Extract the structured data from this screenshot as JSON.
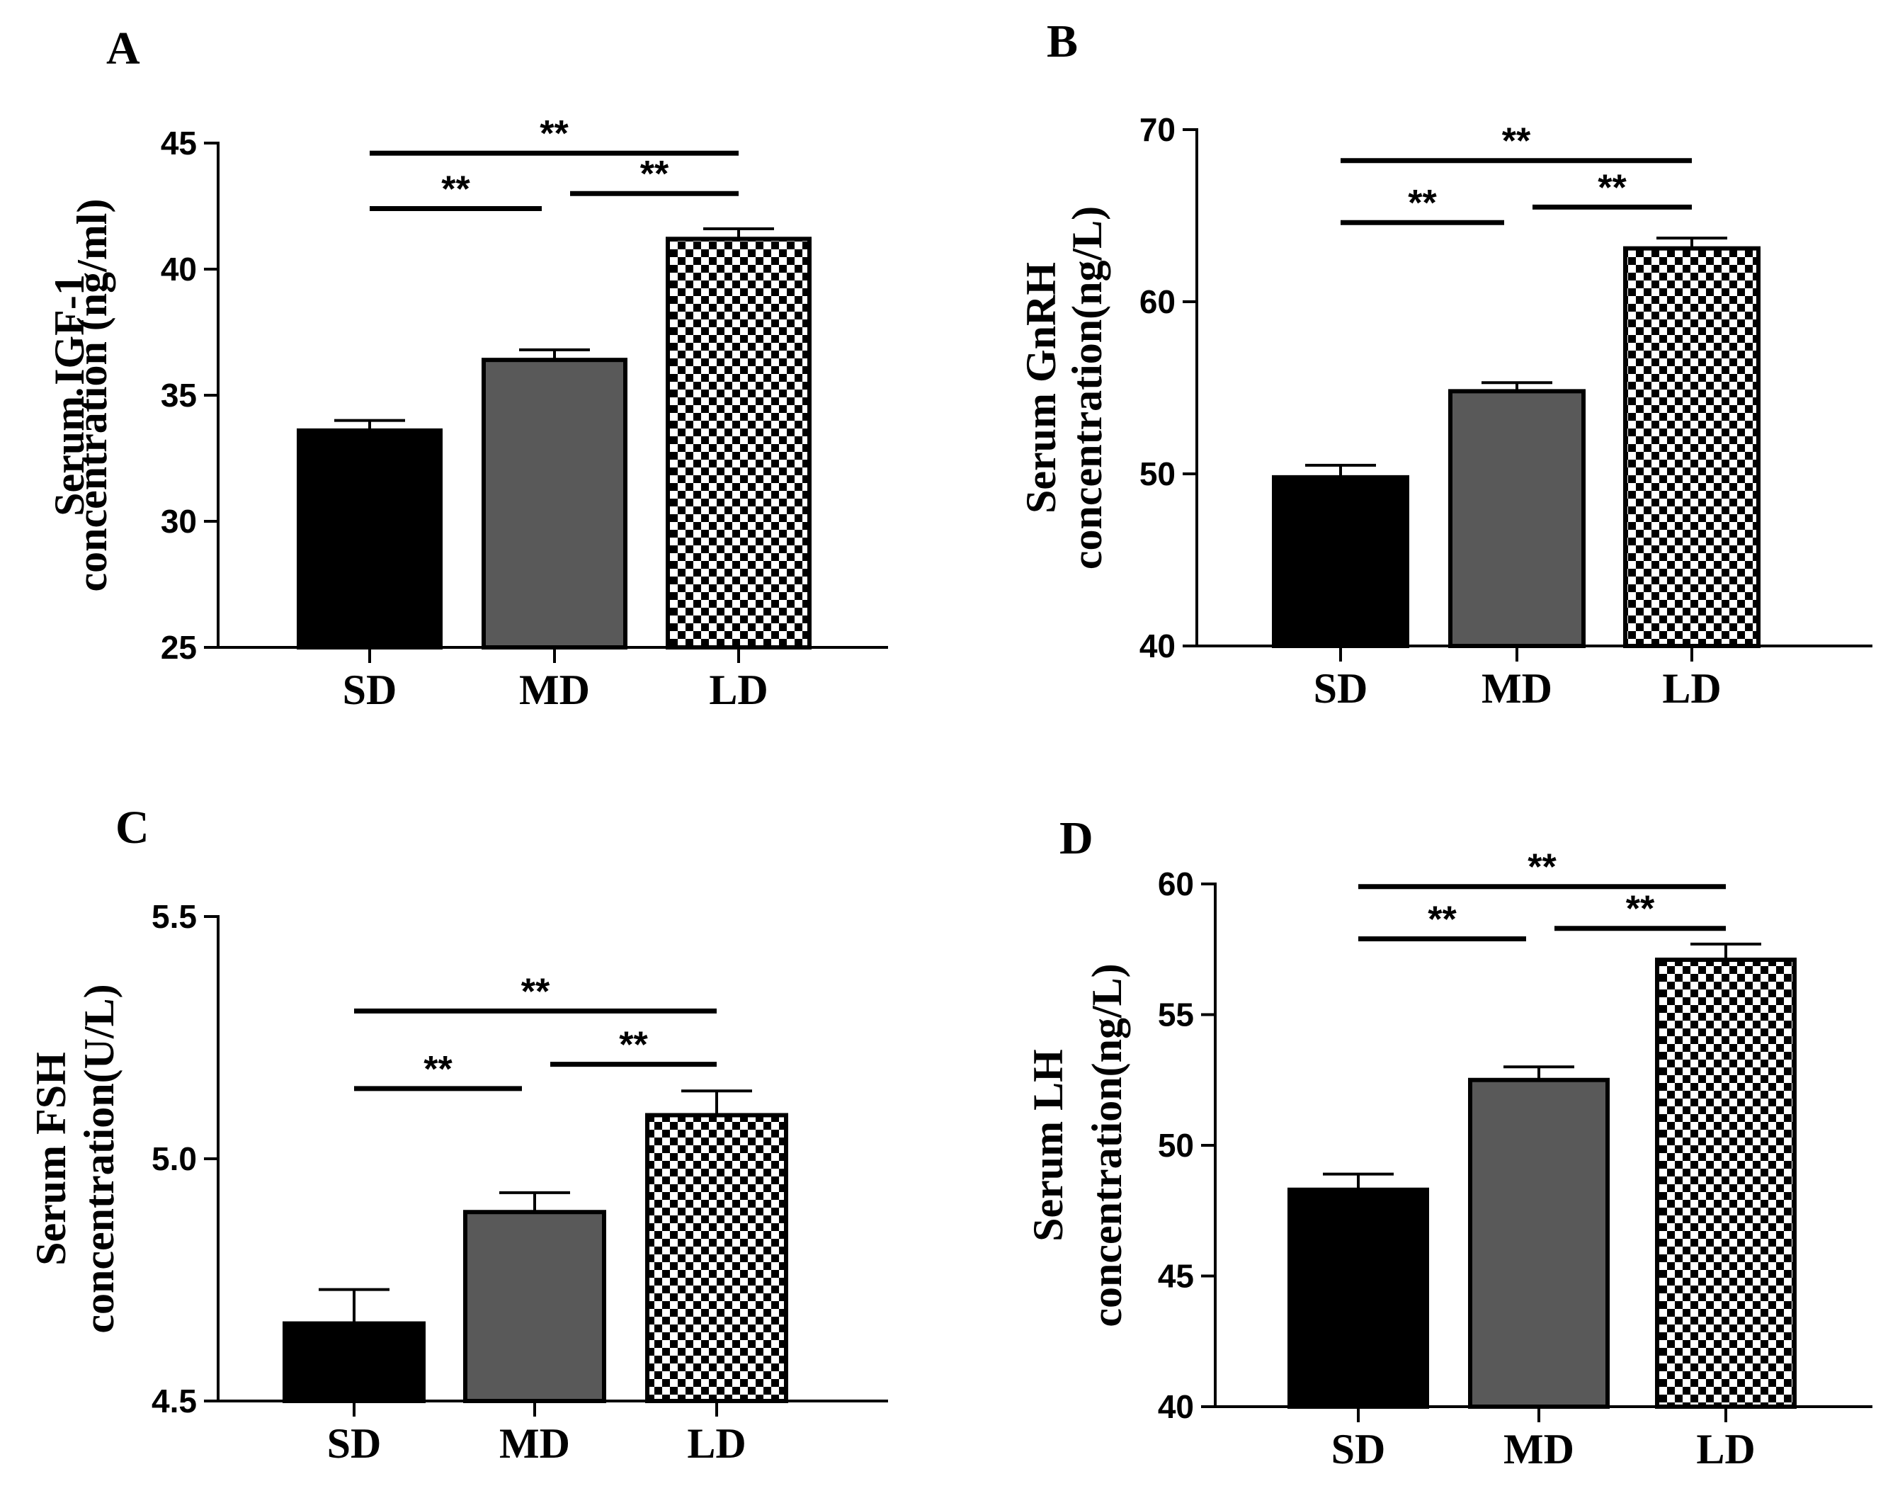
{
  "chart_data": [
    {
      "type": "bar",
      "panel": "A",
      "ylabel_line1": "Serum IGF-1",
      "ylabel_line2": "concentration (ng/ml)",
      "categories": [
        "SD",
        "MD",
        "LD"
      ],
      "values": [
        33.6,
        36.4,
        41.2
      ],
      "errors": [
        0.4,
        0.4,
        0.4
      ],
      "ylim": [
        25,
        45
      ],
      "yticks": [
        25,
        30,
        35,
        40,
        45
      ],
      "tick_labels": [
        "25",
        "30",
        "35",
        "40",
        "45"
      ],
      "bar_fills": [
        "black",
        "gray",
        "checker"
      ],
      "significance": [
        {
          "from": 0,
          "to": 1,
          "level": 42.4,
          "label": "**"
        },
        {
          "from": 1,
          "to": 2,
          "level": 43.0,
          "label": "**"
        },
        {
          "from": 0,
          "to": 2,
          "level": 44.6,
          "label": "**"
        }
      ]
    },
    {
      "type": "bar",
      "panel": "B",
      "ylabel_line1": "Serum GnRH",
      "ylabel_line2": "concentration(ng/L)",
      "categories": [
        "SD",
        "MD",
        "LD"
      ],
      "values": [
        49.8,
        54.8,
        63.1
      ],
      "errors": [
        0.7,
        0.5,
        0.6
      ],
      "ylim": [
        40,
        70
      ],
      "yticks": [
        40,
        50,
        60,
        70
      ],
      "tick_labels": [
        "40",
        "50",
        "60",
        "70"
      ],
      "bar_fills": [
        "black",
        "gray",
        "checker"
      ],
      "significance": [
        {
          "from": 0,
          "to": 1,
          "level": 64.6,
          "label": "**"
        },
        {
          "from": 1,
          "to": 2,
          "level": 65.5,
          "label": "**"
        },
        {
          "from": 0,
          "to": 2,
          "level": 68.2,
          "label": "**"
        }
      ]
    },
    {
      "type": "bar",
      "panel": "C",
      "ylabel_line1": "Serum FSH",
      "ylabel_line2": "concentration(U/L)",
      "categories": [
        "SD",
        "MD",
        "LD"
      ],
      "values": [
        4.66,
        4.89,
        5.09
      ],
      "errors": [
        0.07,
        0.04,
        0.05
      ],
      "ylim": [
        4.5,
        5.5
      ],
      "yticks": [
        4.5,
        5.0,
        5.5
      ],
      "tick_labels": [
        "4.5",
        "5.0",
        "5.5"
      ],
      "bar_fills": [
        "black",
        "gray",
        "checker"
      ],
      "significance": [
        {
          "from": 0,
          "to": 1,
          "level": 5.145,
          "label": "**"
        },
        {
          "from": 1,
          "to": 2,
          "level": 5.195,
          "label": "**"
        },
        {
          "from": 0,
          "to": 2,
          "level": 5.305,
          "label": "**"
        }
      ]
    },
    {
      "type": "bar",
      "panel": "D",
      "ylabel_line1": "Serum LH",
      "ylabel_line2": "concentration(ng/L)",
      "categories": [
        "SD",
        "MD",
        "LD"
      ],
      "values": [
        48.3,
        52.5,
        57.1
      ],
      "errors": [
        0.6,
        0.5,
        0.6
      ],
      "ylim": [
        40,
        60
      ],
      "yticks": [
        40,
        45,
        50,
        55,
        60
      ],
      "tick_labels": [
        "40",
        "45",
        "50",
        "55",
        "60"
      ],
      "bar_fills": [
        "black",
        "gray",
        "checker"
      ],
      "significance": [
        {
          "from": 0,
          "to": 1,
          "level": 57.9,
          "label": "**"
        },
        {
          "from": 1,
          "to": 2,
          "level": 58.3,
          "label": "**"
        },
        {
          "from": 0,
          "to": 2,
          "level": 59.9,
          "label": "**"
        }
      ]
    }
  ]
}
